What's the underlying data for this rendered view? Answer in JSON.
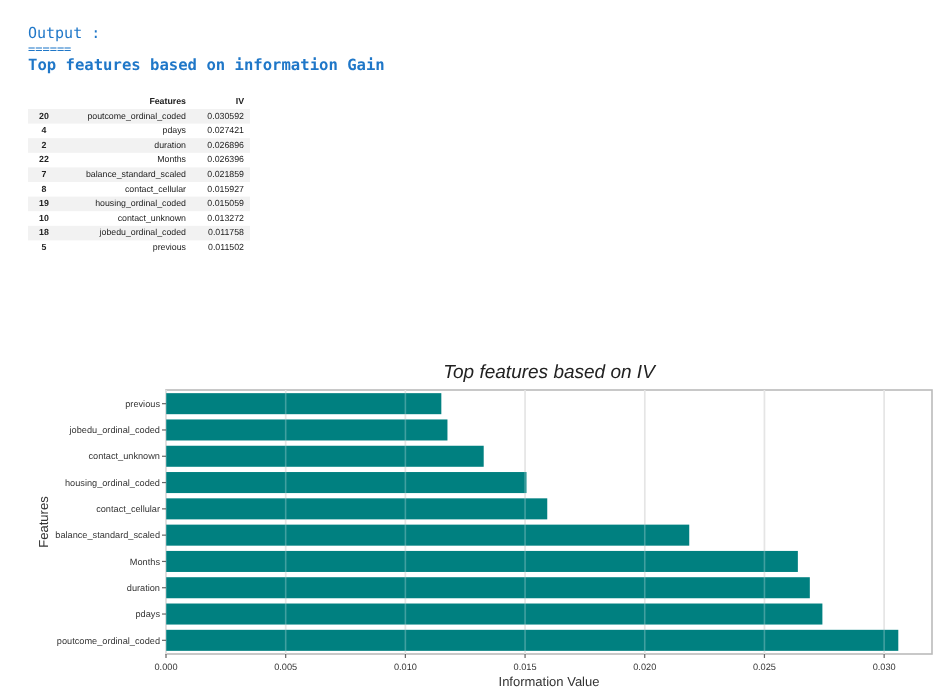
{
  "chart_data": [
    {
      "type": "other",
      "title": "Top features based on information Gain",
      "annotations": [
        "Output :",
        "======"
      ],
      "categories": [
        "Features",
        "IV"
      ],
      "y_categories": [
        "20",
        "4",
        "2",
        "22",
        "7",
        "8",
        "19",
        "10",
        "18",
        "5"
      ],
      "cell_labels": [
        [
          "poutcome_ordinal_coded",
          "0.030592"
        ],
        [
          "pdays",
          "0.027421"
        ],
        [
          "duration",
          "0.026896"
        ],
        [
          "Months",
          "0.026396"
        ],
        [
          "balance_standard_scaled",
          "0.021859"
        ],
        [
          "contact_cellular",
          "0.015927"
        ],
        [
          "housing_ordinal_coded",
          "0.015059"
        ],
        [
          "contact_unknown",
          "0.013272"
        ],
        [
          "jobedu_ordinal_coded",
          "0.011758"
        ],
        [
          "previous",
          "0.011502"
        ]
      ]
    },
    {
      "type": "bar",
      "orientation": "horizontal",
      "title": "Top features based on IV",
      "xlabel": "Information Value",
      "ylabel": "Features",
      "categories": [
        "previous",
        "jobedu_ordinal_coded",
        "contact_unknown",
        "housing_ordinal_coded",
        "contact_cellular",
        "balance_standard_scaled",
        "Months",
        "duration",
        "pdays",
        "poutcome_ordinal_coded"
      ],
      "values": [
        0.011502,
        0.011758,
        0.013272,
        0.015059,
        0.015927,
        0.021859,
        0.026396,
        0.026896,
        0.027421,
        0.030592
      ],
      "color": "#008080",
      "xlim": [
        0,
        0.032
      ],
      "xticks": [
        {
          "value": 0,
          "label": "0.000"
        },
        {
          "value": 0.005,
          "label": "0.005"
        },
        {
          "value": 0.01,
          "label": "0.010"
        },
        {
          "value": 0.015,
          "label": "0.015"
        },
        {
          "value": 0.02,
          "label": "0.020"
        },
        {
          "value": 0.025,
          "label": "0.025"
        },
        {
          "value": 0.03,
          "label": "0.030"
        }
      ],
      "grid": "x"
    }
  ]
}
